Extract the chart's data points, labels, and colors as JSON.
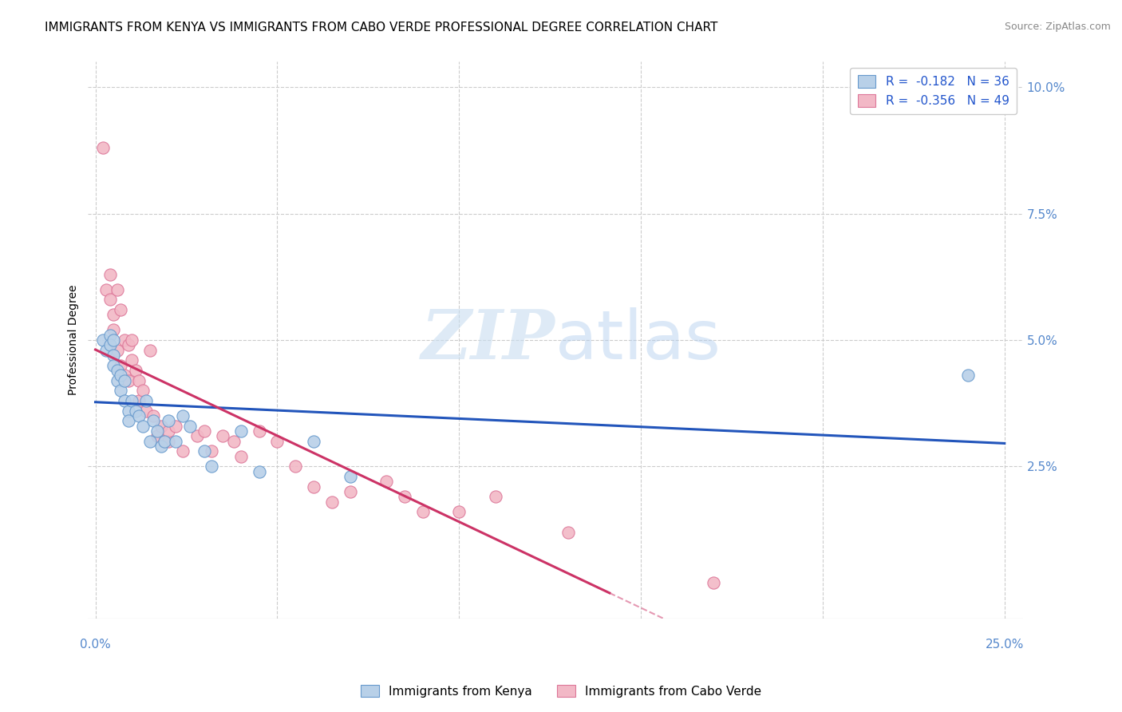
{
  "title": "IMMIGRANTS FROM KENYA VS IMMIGRANTS FROM CABO VERDE PROFESSIONAL DEGREE CORRELATION CHART",
  "source": "Source: ZipAtlas.com",
  "ylabel": "Professional Degree",
  "x_tick_labels_bottom": [
    "0.0%",
    "25.0%"
  ],
  "x_tick_vals_bottom": [
    0.0,
    0.25
  ],
  "y_tick_labels_right": [
    "10.0%",
    "7.5%",
    "5.0%",
    "2.5%"
  ],
  "y_tick_vals": [
    0.1,
    0.075,
    0.05,
    0.025
  ],
  "x_grid_vals": [
    0.0,
    0.05,
    0.1,
    0.15,
    0.2,
    0.25
  ],
  "xlim": [
    -0.002,
    0.255
  ],
  "ylim": [
    -0.005,
    0.105
  ],
  "kenya_R": -0.182,
  "kenya_N": 36,
  "caboverde_R": -0.356,
  "caboverde_N": 49,
  "kenya_color": "#b8d0e8",
  "caboverde_color": "#f2b8c6",
  "kenya_edge_color": "#6699cc",
  "caboverde_edge_color": "#dd7799",
  "kenya_line_color": "#2255bb",
  "caboverde_line_color": "#cc3366",
  "kenya_scatter_x": [
    0.002,
    0.003,
    0.004,
    0.004,
    0.005,
    0.005,
    0.005,
    0.006,
    0.006,
    0.007,
    0.007,
    0.008,
    0.008,
    0.009,
    0.009,
    0.01,
    0.011,
    0.012,
    0.013,
    0.014,
    0.015,
    0.016,
    0.017,
    0.018,
    0.019,
    0.02,
    0.022,
    0.024,
    0.026,
    0.03,
    0.032,
    0.04,
    0.045,
    0.06,
    0.07,
    0.24
  ],
  "kenya_scatter_y": [
    0.05,
    0.048,
    0.051,
    0.049,
    0.05,
    0.047,
    0.045,
    0.044,
    0.042,
    0.043,
    0.04,
    0.042,
    0.038,
    0.036,
    0.034,
    0.038,
    0.036,
    0.035,
    0.033,
    0.038,
    0.03,
    0.034,
    0.032,
    0.029,
    0.03,
    0.034,
    0.03,
    0.035,
    0.033,
    0.028,
    0.025,
    0.032,
    0.024,
    0.03,
    0.023,
    0.043
  ],
  "caboverde_scatter_x": [
    0.002,
    0.003,
    0.004,
    0.004,
    0.005,
    0.005,
    0.006,
    0.006,
    0.007,
    0.007,
    0.008,
    0.008,
    0.009,
    0.009,
    0.01,
    0.01,
    0.011,
    0.012,
    0.012,
    0.013,
    0.014,
    0.015,
    0.016,
    0.017,
    0.018,
    0.019,
    0.02,
    0.02,
    0.022,
    0.024,
    0.028,
    0.03,
    0.032,
    0.035,
    0.038,
    0.04,
    0.045,
    0.05,
    0.055,
    0.06,
    0.065,
    0.07,
    0.08,
    0.085,
    0.09,
    0.1,
    0.11,
    0.13,
    0.17
  ],
  "caboverde_scatter_y": [
    0.088,
    0.06,
    0.063,
    0.058,
    0.055,
    0.052,
    0.06,
    0.048,
    0.056,
    0.045,
    0.05,
    0.043,
    0.049,
    0.042,
    0.05,
    0.046,
    0.044,
    0.038,
    0.042,
    0.04,
    0.036,
    0.048,
    0.035,
    0.031,
    0.033,
    0.03,
    0.03,
    0.032,
    0.033,
    0.028,
    0.031,
    0.032,
    0.028,
    0.031,
    0.03,
    0.027,
    0.032,
    0.03,
    0.025,
    0.021,
    0.018,
    0.02,
    0.022,
    0.019,
    0.016,
    0.016,
    0.019,
    0.012,
    0.002
  ],
  "watermark_zip": "ZIP",
  "watermark_atlas": "atlas",
  "background_color": "#ffffff",
  "grid_color": "#cccccc",
  "title_fontsize": 11,
  "label_fontsize": 10,
  "tick_fontsize": 11,
  "legend_fontsize": 11,
  "source_fontsize": 9
}
